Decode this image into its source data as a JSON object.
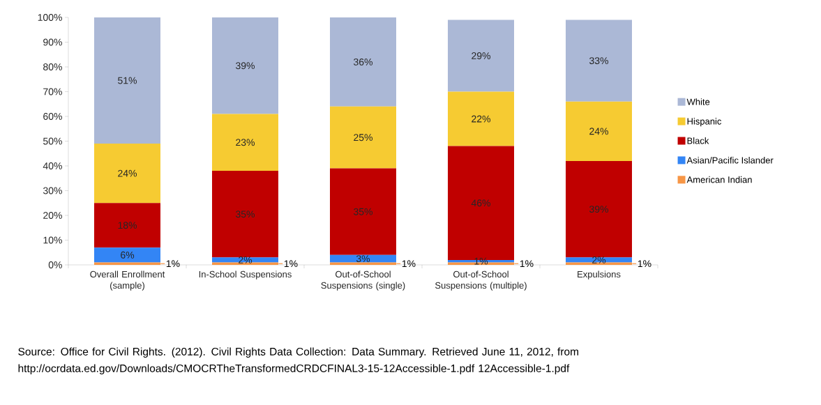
{
  "chart_data": {
    "type": "bar",
    "stacked": true,
    "categories": [
      "Overall Enrollment (sample)",
      "In-School Suspensions",
      "Out-of-School Suspensions (single)",
      "Out-of-School Suspensions (multiple)",
      "Expulsions"
    ],
    "series": [
      {
        "name": "American Indian",
        "color": "#f79646",
        "values": [
          1,
          1,
          1,
          1,
          1
        ],
        "value_labels": [
          "1%",
          "1%",
          "1%",
          "1%",
          "1%"
        ]
      },
      {
        "name": "Asian/Pacific Islander",
        "color": "#3385f5",
        "values": [
          6,
          2,
          3,
          1,
          2
        ],
        "value_labels": [
          "6%",
          "2%",
          "3%",
          "1%",
          "2%"
        ]
      },
      {
        "name": "Black",
        "color": "#c00000",
        "values": [
          18,
          35,
          35,
          46,
          39
        ],
        "value_labels": [
          "18%",
          "35%",
          "35%",
          "46%",
          "39%"
        ]
      },
      {
        "name": "Hispanic",
        "color": "#f6cb32",
        "values": [
          24,
          23,
          25,
          22,
          24
        ],
        "value_labels": [
          "24%",
          "23%",
          "25%",
          "22%",
          "24%"
        ]
      },
      {
        "name": "White",
        "color": "#abb8d6",
        "values": [
          51,
          39,
          36,
          29,
          33
        ],
        "value_labels": [
          "51%",
          "39%",
          "36%",
          "29%",
          "33%"
        ]
      }
    ],
    "ylim": [
      0,
      100
    ],
    "yticks": [
      {
        "value": 0,
        "label": "0%"
      },
      {
        "value": 10,
        "label": "10%"
      },
      {
        "value": 20,
        "label": "20%"
      },
      {
        "value": 30,
        "label": "30%"
      },
      {
        "value": 40,
        "label": "40%"
      },
      {
        "value": 50,
        "label": "50%"
      },
      {
        "value": 60,
        "label": "60%"
      },
      {
        "value": 70,
        "label": "70%"
      },
      {
        "value": 80,
        "label": "80%"
      },
      {
        "value": 90,
        "label": "90%"
      },
      {
        "value": 100,
        "label": "100%"
      }
    ],
    "legend": "right",
    "annotations": [
      "Source: Office for Civil Rights. (2012). Civil Rights Data Collection: Data Summary. Retrieved June 11, 2012, from http://ocrdata.ed.gov/Downloads/CMOCRTheTransformedCRDCFINAL3-15-12Accessible-1.pdf 12Accessible-1.pdf"
    ]
  }
}
